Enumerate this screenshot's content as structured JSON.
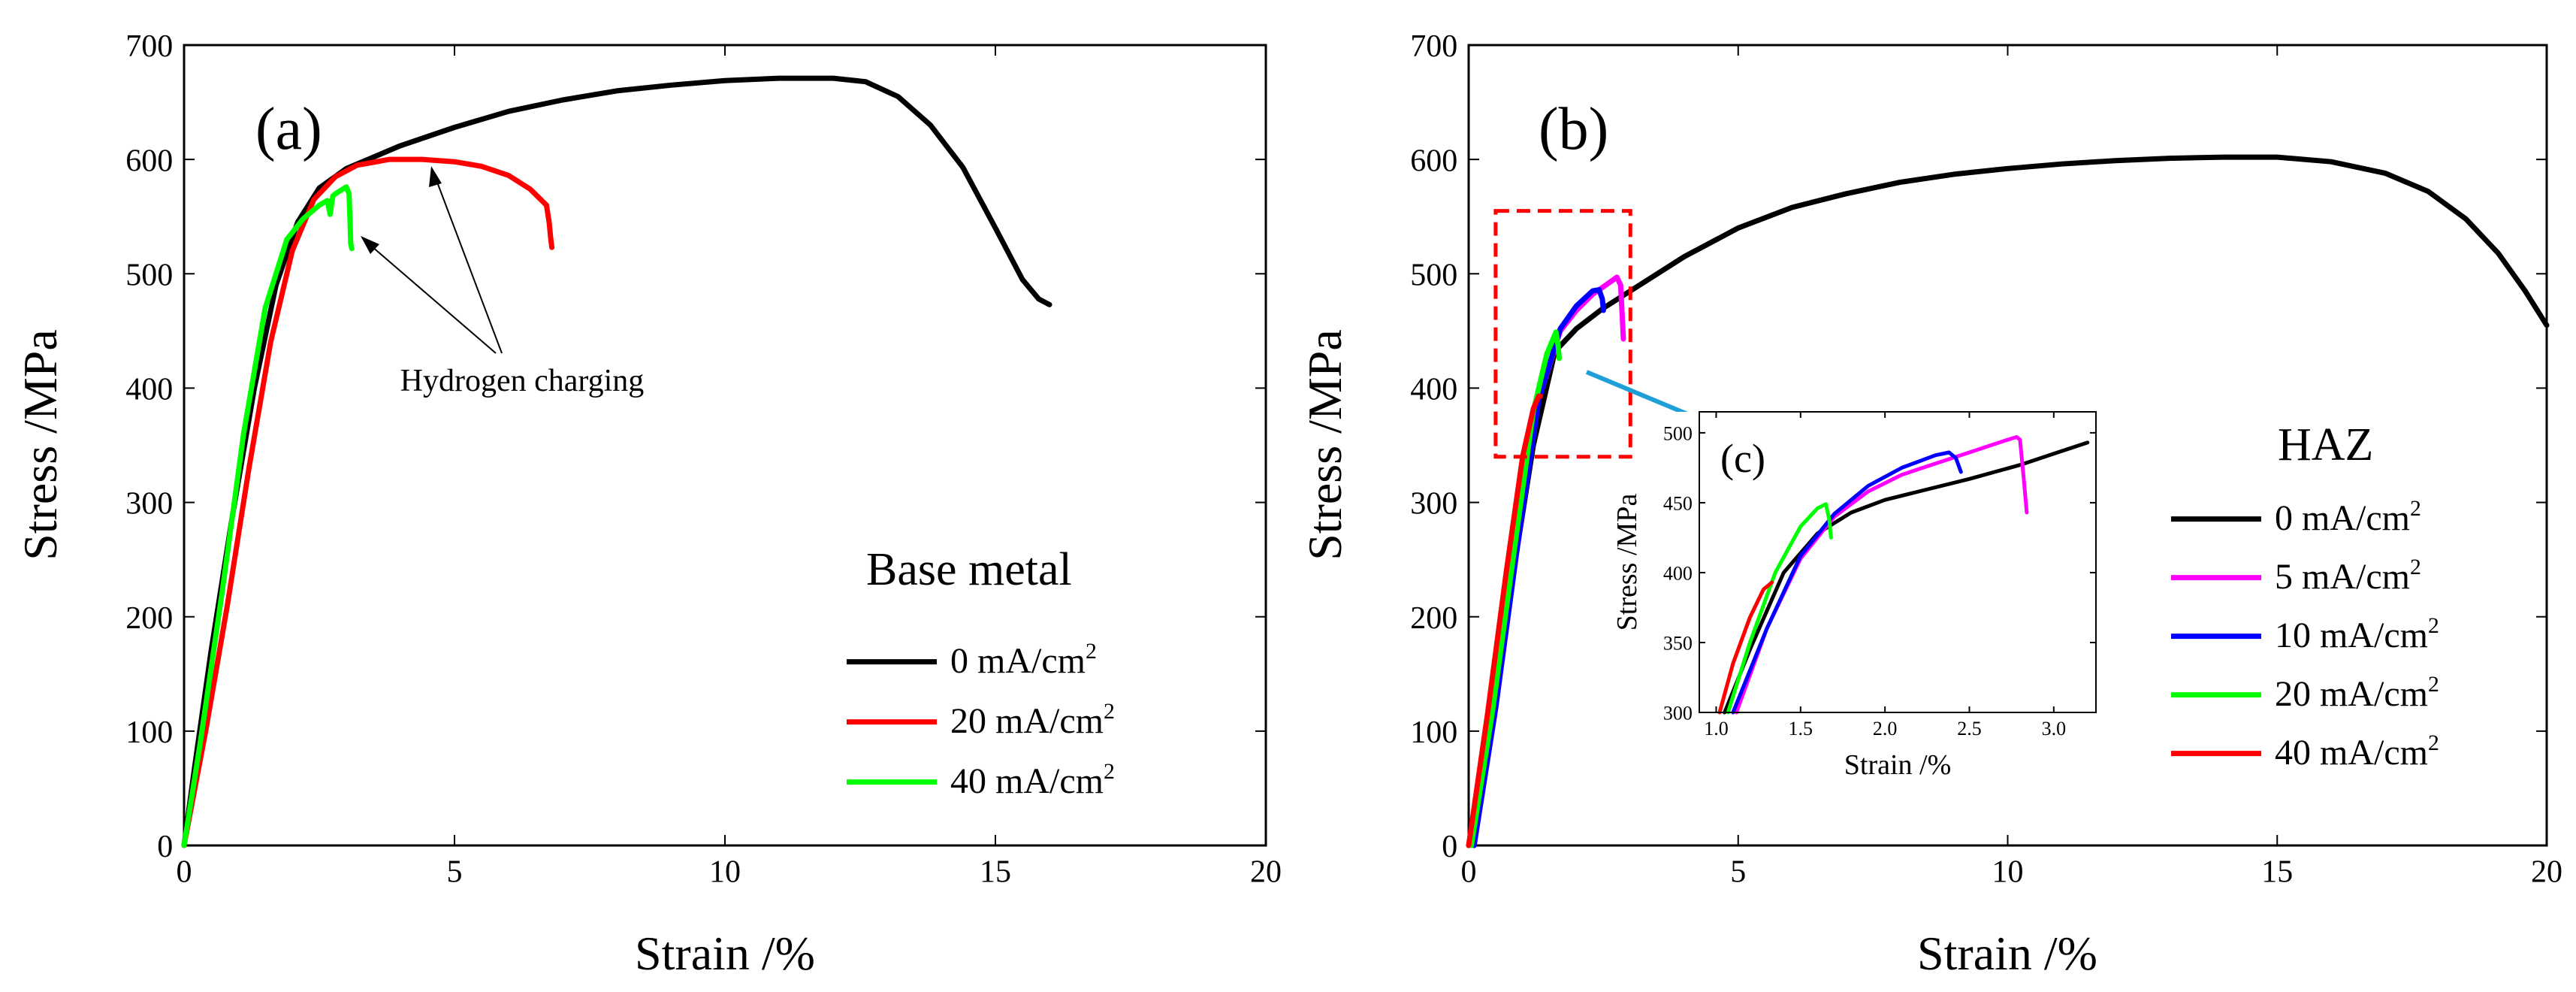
{
  "chart_data": [
    {
      "type": "line",
      "panel_label": "(a)",
      "xlabel": "Strain /%",
      "ylabel": "Stress /MPa",
      "xlim": [
        0,
        20
      ],
      "ylim": [
        0,
        700
      ],
      "xticks": [
        0,
        5,
        10,
        15,
        20
      ],
      "yticks": [
        0,
        100,
        200,
        300,
        400,
        500,
        600,
        700
      ],
      "legend_title": "Base metal",
      "legend_position": "bottom-right",
      "annotation": "Hydrogen charging",
      "series": [
        {
          "name": "0 mA/cm",
          "sup": "2",
          "color": "#000000",
          "x": [
            0,
            0.2,
            0.5,
            0.9,
            1.3,
            1.7,
            2.1,
            2.5,
            3,
            4,
            5,
            6,
            7,
            8,
            9,
            10,
            11,
            12,
            12.6,
            13.2,
            13.8,
            14.4,
            15,
            15.5,
            15.8,
            16.0
          ],
          "y": [
            0,
            70,
            170,
            290,
            400,
            490,
            545,
            575,
            592,
            612,
            628,
            642,
            652,
            660,
            665,
            669,
            671,
            671,
            668,
            655,
            630,
            593,
            540,
            495,
            478,
            473
          ]
        },
        {
          "name": "20 mA/cm",
          "sup": "2",
          "color": "#ff0000",
          "x": [
            0,
            0.4,
            0.8,
            1.2,
            1.6,
            2.0,
            2.4,
            2.8,
            3.2,
            3.8,
            4.4,
            5.0,
            5.5,
            6.0,
            6.4,
            6.7,
            6.75,
            6.78,
            6.8
          ],
          "y": [
            0,
            100,
            210,
            330,
            440,
            520,
            565,
            585,
            595,
            600,
            600,
            598,
            594,
            586,
            574,
            560,
            545,
            530,
            523
          ]
        },
        {
          "name": "40 mA/cm",
          "sup": "2",
          "color": "#00ff00",
          "x": [
            0,
            0.3,
            0.7,
            1.1,
            1.5,
            1.9,
            2.2,
            2.5,
            2.65,
            2.7,
            2.75,
            2.8,
            3.0,
            3.05,
            3.07,
            3.08,
            3.1
          ],
          "y": [
            0,
            90,
            220,
            360,
            470,
            530,
            548,
            560,
            564,
            552,
            568,
            570,
            576,
            570,
            545,
            527,
            522
          ]
        }
      ]
    },
    {
      "type": "line",
      "panel_label": "(b)",
      "xlabel": "Strain /%",
      "ylabel": "Stress /MPa",
      "xlim": [
        0,
        20
      ],
      "ylim": [
        0,
        700
      ],
      "xticks": [
        0,
        5,
        10,
        15,
        20
      ],
      "yticks": [
        0,
        100,
        200,
        300,
        400,
        500,
        600,
        700
      ],
      "legend_title": "HAZ",
      "legend_position": "right",
      "series": [
        {
          "name": "0 mA/cm",
          "sup": "2",
          "color": "#000000",
          "x": [
            0,
            0.4,
            0.8,
            1.2,
            1.6,
            2.0,
            2.5,
            3,
            4,
            5,
            6,
            7,
            8,
            9,
            10,
            11,
            12,
            13,
            14,
            15,
            16,
            17,
            17.8,
            18.5,
            19.1,
            19.6,
            20.0
          ],
          "y": [
            0,
            100,
            230,
            350,
            432,
            452,
            470,
            485,
            515,
            540,
            558,
            570,
            580,
            587,
            592,
            596,
            599,
            601,
            602,
            602,
            598,
            588,
            572,
            548,
            518,
            485,
            455
          ]
        },
        {
          "name": "5 mA/cm",
          "sup": "2",
          "color": "#ff00ff",
          "x": [
            0.1,
            0.5,
            0.9,
            1.3,
            1.7,
            2.0,
            2.3,
            2.6,
            2.75,
            2.82,
            2.85,
            2.87
          ],
          "y": [
            0,
            120,
            260,
            390,
            450,
            468,
            482,
            492,
            497,
            490,
            462,
            443
          ]
        },
        {
          "name": "10 mA/cm",
          "sup": "2",
          "color": "#0000ff",
          "x": [
            0.1,
            0.5,
            0.9,
            1.3,
            1.7,
            2.0,
            2.3,
            2.42,
            2.48,
            2.5
          ],
          "y": [
            0,
            120,
            260,
            390,
            452,
            472,
            485,
            486,
            478,
            468
          ]
        },
        {
          "name": "20 mA/cm",
          "sup": "2",
          "color": "#00ff00",
          "x": [
            0.05,
            0.45,
            0.85,
            1.2,
            1.45,
            1.62,
            1.66,
            1.68
          ],
          "y": [
            0,
            120,
            260,
            380,
            430,
            449,
            437,
            426
          ]
        },
        {
          "name": "40 mA/cm",
          "sup": "2",
          "color": "#ff0000",
          "x": [
            0,
            0.35,
            0.7,
            1.0,
            1.2,
            1.3,
            1.33
          ],
          "y": [
            0,
            115,
            240,
            340,
            382,
            393,
            393
          ]
        }
      ],
      "highlight_box": {
        "x": [
          0.5,
          3.0
        ],
        "y": [
          340,
          555
        ]
      },
      "inset": {
        "panel_label": "(c)",
        "xlabel": "Strain /%",
        "ylabel": "Stress /MPa",
        "xlim": [
          0.9,
          3.25
        ],
        "ylim": [
          300,
          515
        ],
        "xticks": [
          1.0,
          1.5,
          2.0,
          2.5,
          3.0
        ],
        "xtick_labels": [
          "1.0",
          "1.5",
          "2.0",
          "2.5",
          "3.0"
        ],
        "yticks": [
          300,
          350,
          400,
          450,
          500
        ],
        "series": [
          {
            "name": "0 mA/cm2",
            "color": "#000000",
            "x": [
              1.05,
              1.2,
              1.4,
              1.6,
              1.8,
              2.0,
              2.2,
              2.5,
              2.8,
              3.0,
              3.2
            ],
            "y": [
              300,
              345,
              400,
              428,
              443,
              452,
              458,
              467,
              477,
              485,
              493
            ]
          },
          {
            "name": "5 mA/cm2",
            "color": "#ff00ff",
            "x": [
              1.12,
              1.3,
              1.5,
              1.7,
              1.9,
              2.1,
              2.3,
              2.5,
              2.7,
              2.78,
              2.8,
              2.82,
              2.84
            ],
            "y": [
              300,
              360,
              410,
              440,
              458,
              470,
              478,
              486,
              494,
              497,
              495,
              470,
              443
            ]
          },
          {
            "name": "10 mA/cm2",
            "color": "#0000ff",
            "x": [
              1.1,
              1.3,
              1.5,
              1.7,
              1.9,
              2.1,
              2.3,
              2.38,
              2.42,
              2.45
            ],
            "y": [
              300,
              360,
              412,
              442,
              462,
              475,
              484,
              486,
              482,
              472
            ]
          },
          {
            "name": "20 mA/cm2",
            "color": "#00ff00",
            "x": [
              1.07,
              1.2,
              1.35,
              1.5,
              1.6,
              1.65,
              1.67,
              1.68
            ],
            "y": [
              300,
              350,
              400,
              433,
              446,
              449,
              438,
              425
            ]
          },
          {
            "name": "40 mA/cm2",
            "color": "#ff0000",
            "x": [
              1.02,
              1.1,
              1.2,
              1.28,
              1.33
            ],
            "y": [
              300,
              335,
              368,
              388,
              393
            ]
          }
        ]
      }
    }
  ]
}
